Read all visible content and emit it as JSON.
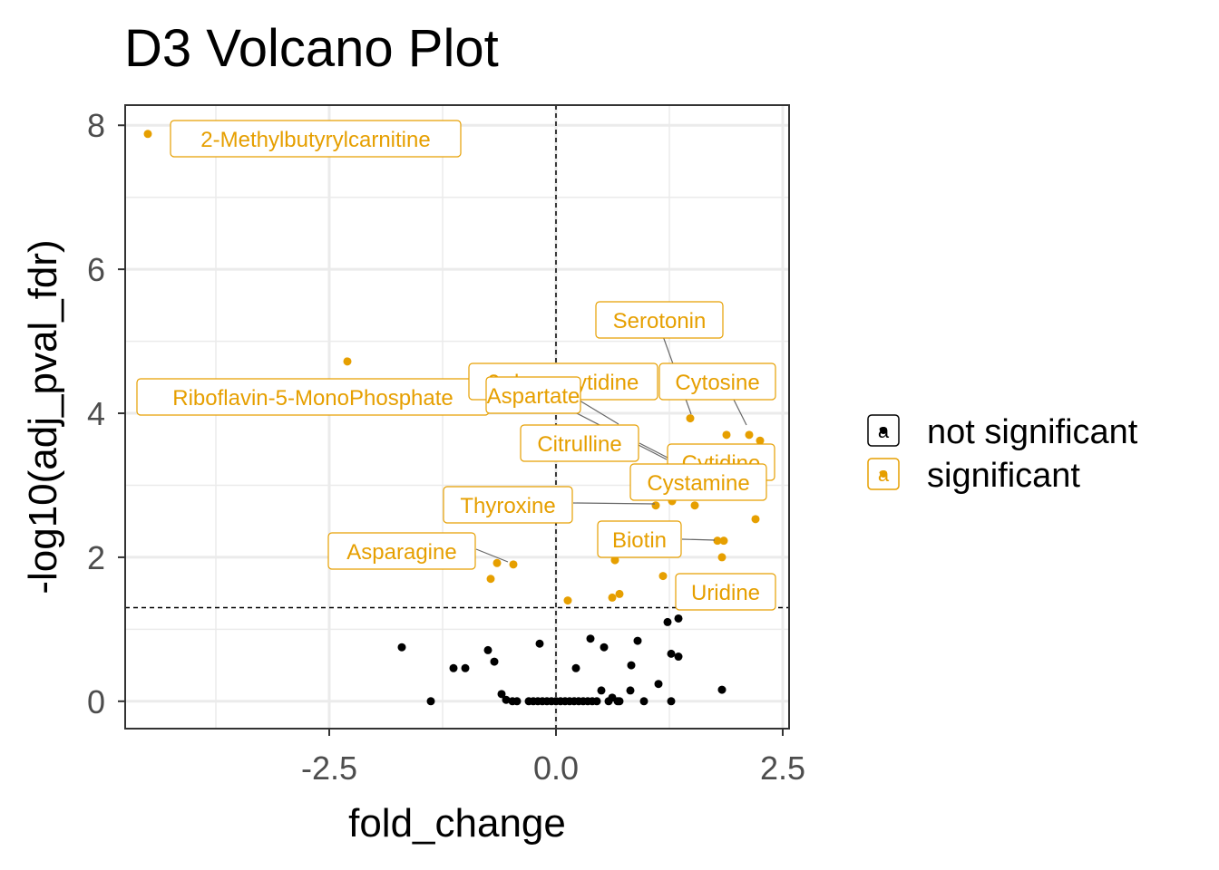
{
  "chart_data": {
    "type": "scatter",
    "title": "D3 Volcano Plot",
    "xlabel": "fold_change",
    "ylabel": "-log10(adj_pval_fdr)",
    "xlim": [
      -4.75,
      2.57
    ],
    "ylim": [
      -0.38,
      8.28
    ],
    "x_ticks": [
      -2.5,
      0.0,
      2.5
    ],
    "x_tick_labels": [
      "-2.5",
      "0.0",
      "2.5"
    ],
    "y_ticks": [
      0,
      2,
      4,
      6,
      8
    ],
    "y_tick_labels": [
      "0",
      "2",
      "4",
      "6",
      "8"
    ],
    "grid": true,
    "threshold_lines": {
      "vertical_x": 0,
      "horizontal_y": 1.3
    },
    "legend": {
      "position": "right",
      "entries": [
        {
          "key": "not_significant",
          "label": "not significant",
          "color": "#000000",
          "glyph": "a"
        },
        {
          "key": "significant",
          "label": "significant",
          "color": "#E69F00",
          "glyph": "a"
        }
      ]
    },
    "colors": {
      "not_significant": "#000000",
      "significant": "#E69F00"
    },
    "series": [
      {
        "key": "not_significant",
        "points": [
          [
            -1.7,
            0.75
          ],
          [
            -1.38,
            0.0
          ],
          [
            -1.13,
            0.46
          ],
          [
            -1.0,
            0.46
          ],
          [
            -0.75,
            0.71
          ],
          [
            -0.68,
            0.55
          ],
          [
            -0.6,
            0.1
          ],
          [
            -0.55,
            0.02
          ],
          [
            -0.48,
            0.0
          ],
          [
            -0.43,
            0.0
          ],
          [
            -0.3,
            0.0
          ],
          [
            -0.25,
            0.0
          ],
          [
            -0.2,
            0.0
          ],
          [
            -0.15,
            0.0
          ],
          [
            -0.1,
            0.0
          ],
          [
            -0.05,
            0.0
          ],
          [
            0.0,
            0.0
          ],
          [
            0.05,
            0.0
          ],
          [
            0.1,
            0.0
          ],
          [
            0.15,
            0.0
          ],
          [
            0.2,
            0.0
          ],
          [
            0.25,
            0.0
          ],
          [
            0.3,
            0.0
          ],
          [
            0.35,
            0.0
          ],
          [
            0.4,
            0.0
          ],
          [
            0.45,
            0.0
          ],
          [
            -0.18,
            0.8
          ],
          [
            0.22,
            0.46
          ],
          [
            0.38,
            0.87
          ],
          [
            0.5,
            0.15
          ],
          [
            0.53,
            0.75
          ],
          [
            0.58,
            0.0
          ],
          [
            0.62,
            0.05
          ],
          [
            0.68,
            0.0
          ],
          [
            0.7,
            0.0
          ],
          [
            0.82,
            0.15
          ],
          [
            0.83,
            0.5
          ],
          [
            0.9,
            0.84
          ],
          [
            0.97,
            0.0
          ],
          [
            1.13,
            0.24
          ],
          [
            1.23,
            1.1
          ],
          [
            1.27,
            0.66
          ],
          [
            1.35,
            1.15
          ],
          [
            1.35,
            0.62
          ],
          [
            1.27,
            0.0
          ],
          [
            1.83,
            0.16
          ]
        ]
      },
      {
        "key": "significant",
        "points": [
          [
            -4.5,
            7.88
          ],
          [
            -2.3,
            4.72
          ],
          [
            1.48,
            3.93
          ],
          [
            1.88,
            3.7
          ],
          [
            2.13,
            3.7
          ],
          [
            2.25,
            3.62
          ],
          [
            1.28,
            3.35
          ],
          [
            1.1,
            2.72
          ],
          [
            1.28,
            2.78
          ],
          [
            1.53,
            2.72
          ],
          [
            2.2,
            2.53
          ],
          [
            1.78,
            2.23
          ],
          [
            1.85,
            2.23
          ],
          [
            1.83,
            2.0
          ],
          [
            -0.65,
            1.92
          ],
          [
            -0.47,
            1.9
          ],
          [
            -0.72,
            1.7
          ],
          [
            0.65,
            1.96
          ],
          [
            1.18,
            1.74
          ],
          [
            0.13,
            1.4
          ],
          [
            0.62,
            1.44
          ],
          [
            0.7,
            1.49
          ]
        ]
      }
    ],
    "labels": [
      {
        "text": "2-Methylbutyrylcarnitine",
        "x": -4.5,
        "y": 7.88
      },
      {
        "text": "Serotonin",
        "x": 1.88,
        "y": 3.7
      },
      {
        "text": "Cytosine",
        "x": 2.13,
        "y": 3.7
      },
      {
        "text": "Riboflavin-5-MonoPhosphate",
        "x": -2.3,
        "y": 4.72
      },
      {
        "text": "2-deoxycytidine",
        "x": 1.48,
        "y": 3.93
      },
      {
        "text": "Aspartate",
        "x": 1.28,
        "y": 3.35
      },
      {
        "text": "Citrulline",
        "x": 1.28,
        "y": 3.35
      },
      {
        "text": "Cytidine",
        "x": 1.28,
        "y": 3.35
      },
      {
        "text": "Cystamine",
        "x": 1.53,
        "y": 2.72
      },
      {
        "text": "Thyroxine",
        "x": 1.1,
        "y": 2.72
      },
      {
        "text": "Biotin",
        "x": 1.78,
        "y": 2.23
      },
      {
        "text": "Asparagine",
        "x": -0.65,
        "y": 1.92
      },
      {
        "text": "Uridine",
        "x": 1.83,
        "y": 2.0
      }
    ]
  }
}
